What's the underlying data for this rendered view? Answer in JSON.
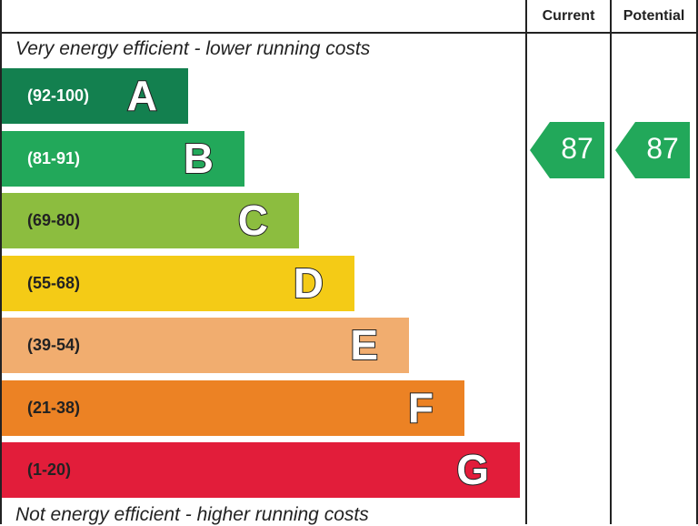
{
  "header": {
    "current_label": "Current",
    "potential_label": "Potential"
  },
  "captions": {
    "top": "Very energy efficient - lower running costs",
    "bottom": "Not energy efficient - higher running costs"
  },
  "chart_data": {
    "type": "bar",
    "categories": [
      "A",
      "B",
      "C",
      "D",
      "E",
      "F",
      "G"
    ],
    "ranges": [
      "(92-100)",
      "(81-91)",
      "(69-80)",
      "(55-68)",
      "(39-54)",
      "(21-38)",
      "(1-20)"
    ],
    "colors": [
      "#13804f",
      "#22a85a",
      "#8cbd3f",
      "#f4cb16",
      "#f1ad6f",
      "#ec8224",
      "#e21d3a"
    ],
    "range_text_colors": [
      "#ffffff",
      "#ffffff",
      "#222222",
      "#222222",
      "#222222",
      "#222222",
      "#222222"
    ],
    "current": {
      "value": 87,
      "band": "B",
      "color": "#22a85a"
    },
    "potential": {
      "value": 87,
      "band": "B",
      "color": "#22a85a"
    }
  }
}
